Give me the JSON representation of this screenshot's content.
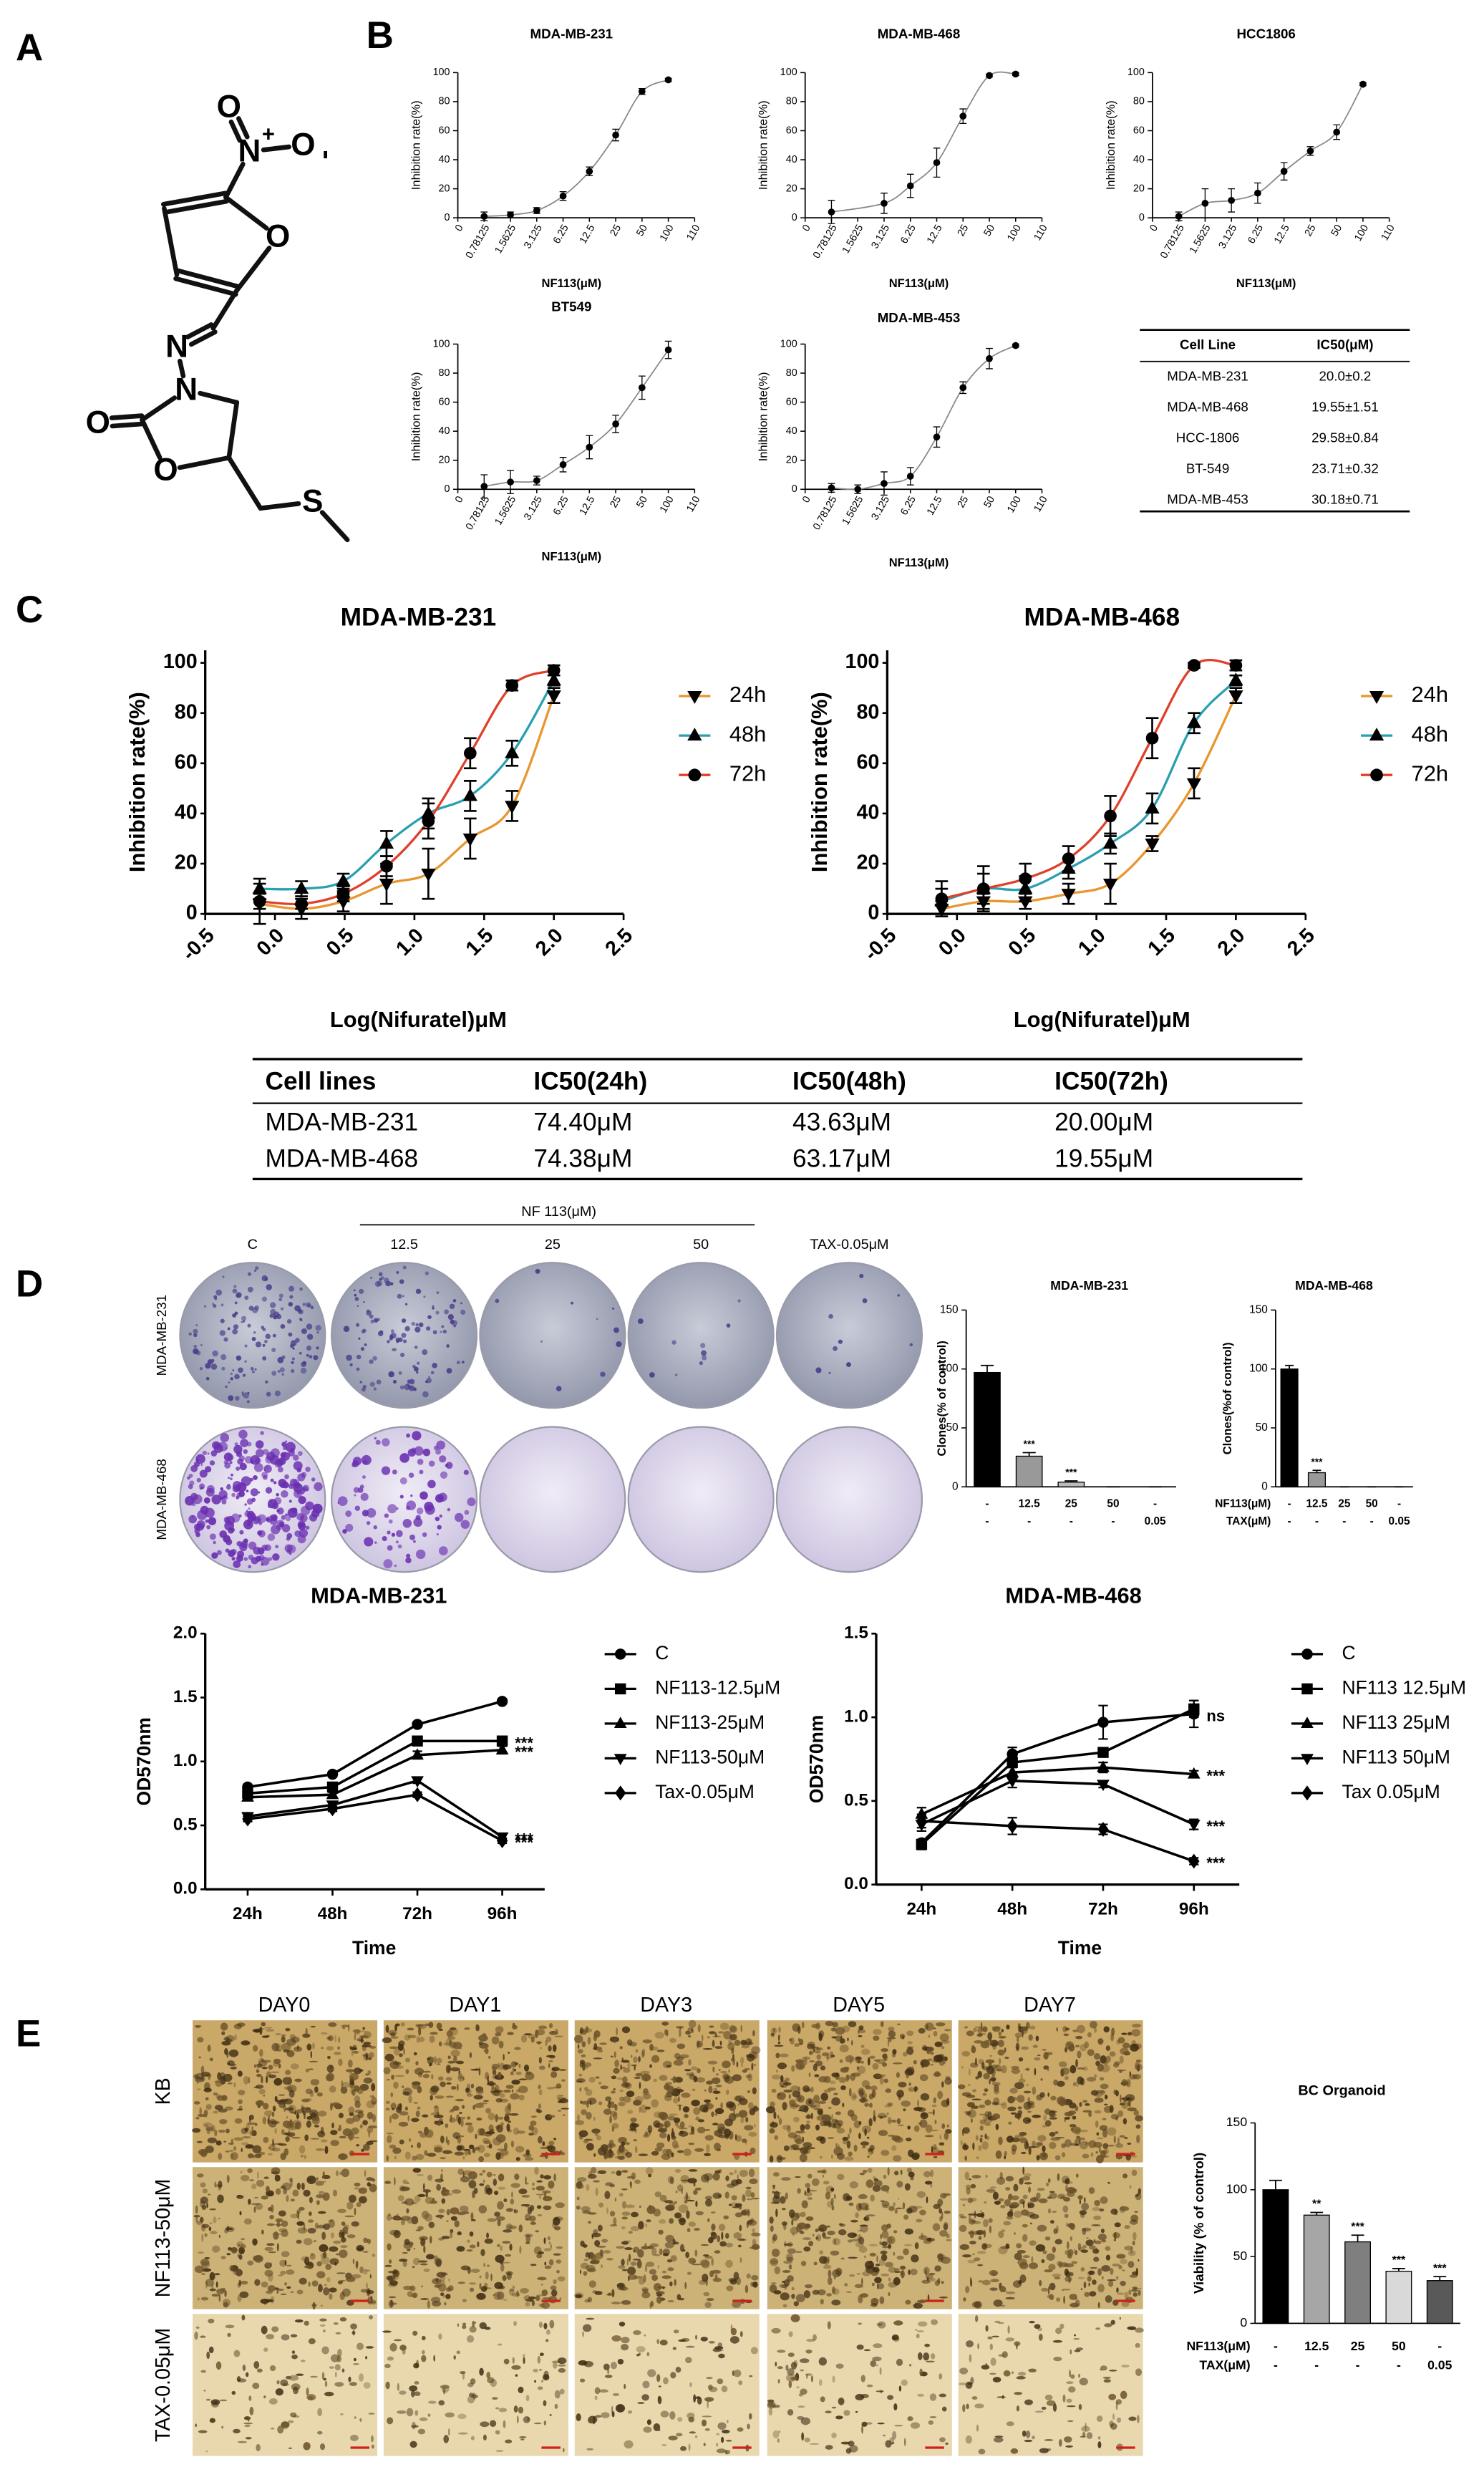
{
  "panel_labels": [
    "A",
    "B",
    "C",
    "D",
    "E"
  ],
  "molecule": {
    "atoms": [
      {
        "label": "O",
        "color": "#e3000f"
      },
      {
        "label": "N",
        "color": "#1a1ae6"
      },
      {
        "label": "O",
        "color": "#e3000f"
      },
      {
        "label": "O",
        "color": "#e3000f"
      },
      {
        "label": "N",
        "color": "#1a1ae6"
      },
      {
        "label": "N",
        "color": "#1a1ae6"
      },
      {
        "label": "O",
        "color": "#e3000f"
      },
      {
        "label": "O",
        "color": "#e3000f"
      },
      {
        "label": "S",
        "color": "#e6c619"
      }
    ],
    "charges": [
      "+",
      "-"
    ]
  },
  "chart_data": [
    {
      "type": "dose",
      "title": "MDA-MB-231",
      "categories": [
        "0",
        "0.78125",
        "1.5625",
        "3.125",
        "6.25",
        "12.5",
        "25",
        "50",
        "100",
        "110"
      ],
      "values": [
        null,
        1,
        2,
        5,
        15,
        32,
        57,
        87,
        95,
        null
      ],
      "errors": [
        null,
        3,
        2,
        2,
        3,
        3,
        4,
        2,
        1,
        null
      ],
      "ylim": [
        0,
        100
      ],
      "yticks": [
        0,
        20,
        40,
        60,
        80,
        100
      ],
      "xlabel": "NF113(μM)",
      "ylabel": "Inhibition rate(%)",
      "color": "#000000",
      "curve_color": "#888888"
    },
    {
      "type": "dose",
      "title": "MDA-MB-468",
      "categories": [
        "0",
        "0.78125",
        "1.5625",
        "3.125",
        "6.25",
        "12.5",
        "25",
        "50",
        "100",
        "110"
      ],
      "values": [
        null,
        4,
        null,
        10,
        22,
        38,
        70,
        98,
        99,
        null
      ],
      "errors": [
        null,
        8,
        null,
        7,
        8,
        10,
        5,
        1,
        1,
        null
      ],
      "ylim": [
        0,
        100
      ],
      "yticks": [
        0,
        20,
        40,
        60,
        80,
        100
      ],
      "xlabel": "NF113(μM)",
      "ylabel": "Inhibition rate(%)",
      "color": "#000000",
      "curve_color": "#888888"
    },
    {
      "type": "dose",
      "title": "HCC1806",
      "categories": [
        "0",
        "0.78125",
        "1.5625",
        "3.125",
        "6.25",
        "12.5",
        "25",
        "50",
        "100",
        "110"
      ],
      "values": [
        null,
        1,
        10,
        12,
        17,
        32,
        46,
        59,
        92,
        null
      ],
      "errors": [
        null,
        3,
        10,
        8,
        7,
        6,
        3,
        5,
        1,
        null
      ],
      "ylim": [
        0,
        100
      ],
      "yticks": [
        0,
        20,
        40,
        60,
        80,
        100
      ],
      "xlabel": "NF113(μM)",
      "ylabel": "Inhibition rate(%)",
      "color": "#000000",
      "curve_color": "#888888"
    },
    {
      "type": "dose",
      "title": "BT549",
      "categories": [
        "0",
        "0.78125",
        "1.5625",
        "3.125",
        "6.25",
        "12.5",
        "25",
        "50",
        "100",
        "110"
      ],
      "values": [
        null,
        2,
        5,
        6,
        17,
        29,
        45,
        70,
        96,
        null
      ],
      "errors": [
        null,
        8,
        8,
        3,
        5,
        8,
        6,
        8,
        6,
        null
      ],
      "ylim": [
        0,
        100
      ],
      "yticks": [
        0,
        20,
        40,
        60,
        80,
        100
      ],
      "xlabel": "NF113(μM)",
      "ylabel": "Inhibition rate(%)",
      "color": "#000000",
      "curve_color": "#888888"
    },
    {
      "type": "dose",
      "title": "MDA-MB-453",
      "categories": [
        "0",
        "0.78125",
        "1.5625",
        "3.125",
        "6.25",
        "12.5",
        "25",
        "50",
        "100",
        "110"
      ],
      "values": [
        null,
        1,
        0,
        4,
        9,
        36,
        70,
        90,
        99,
        null
      ],
      "errors": [
        null,
        3,
        3,
        8,
        6,
        7,
        4,
        7,
        1,
        null
      ],
      "ylim": [
        0,
        100
      ],
      "yticks": [
        0,
        20,
        40,
        60,
        80,
        100
      ],
      "xlabel": "NF113(μM)",
      "ylabel": "Inhibition rate(%)",
      "color": "#000000",
      "curve_color": "#888888"
    },
    {
      "type": "dose",
      "title": "MDA-MB-231",
      "x": [
        -0.11,
        0.19,
        0.49,
        0.8,
        1.1,
        1.4,
        1.7,
        2.0
      ],
      "series": [
        {
          "name": "24h",
          "color": "#e8962e",
          "marker": "triangle-down",
          "values": [
            4,
            2,
            5,
            12,
            16,
            30,
            43,
            87
          ],
          "errors": [
            8,
            4,
            4,
            8,
            10,
            8,
            6,
            3
          ]
        },
        {
          "name": "48h",
          "color": "#2a9fb0",
          "marker": "triangle",
          "values": [
            10,
            10,
            13,
            28,
            40,
            47,
            64,
            93
          ],
          "errors": [
            4,
            3,
            3,
            5,
            6,
            6,
            5,
            2
          ]
        },
        {
          "name": "72h",
          "color": "#e0402a",
          "marker": "circle",
          "values": [
            5,
            4,
            8,
            19,
            37,
            64,
            91,
            97
          ],
          "errors": [
            3,
            2,
            3,
            4,
            7,
            6,
            2,
            2
          ]
        }
      ],
      "marker_color": "#000000",
      "xlim": [
        -0.5,
        2.5
      ],
      "xticks": [
        -0.5,
        {
          "value": 0,
          "label": "0.0"
        },
        0.5,
        {
          "value": 1,
          "label": "1.0"
        },
        1.5,
        {
          "value": 2,
          "label": "2.0"
        },
        2.5
      ],
      "ylim": [
        0,
        105
      ],
      "yticks": [
        0,
        20,
        40,
        60,
        80,
        100
      ],
      "xlabel": "Log(Nifuratel)μM",
      "ylabel": "Inhibition rate(%)",
      "legend": "right"
    },
    {
      "type": "dose",
      "title": "MDA-MB-468",
      "x": [
        -0.11,
        0.19,
        0.49,
        0.8,
        1.1,
        1.4,
        1.7,
        2.0
      ],
      "series": [
        {
          "name": "24h",
          "color": "#e8962e",
          "marker": "triangle-down",
          "values": [
            2,
            5,
            5,
            8,
            12,
            28,
            52,
            87
          ],
          "errors": [
            3,
            3,
            3,
            4,
            8,
            3,
            6,
            3
          ]
        },
        {
          "name": "48h",
          "color": "#2a9fb0",
          "marker": "triangle",
          "values": [
            5,
            10,
            10,
            18,
            28,
            42,
            76,
            93
          ],
          "errors": [
            5,
            6,
            5,
            4,
            4,
            6,
            4,
            2
          ]
        },
        {
          "name": "72h",
          "color": "#e0402a",
          "marker": "circle",
          "values": [
            6,
            10,
            14,
            22,
            39,
            70,
            99,
            99
          ],
          "errors": [
            7,
            9,
            6,
            5,
            8,
            8,
            1,
            2
          ]
        }
      ],
      "marker_color": "#000000",
      "xlim": [
        -0.5,
        2.5
      ],
      "xticks": [
        -0.5,
        {
          "value": 0,
          "label": "0.0"
        },
        0.5,
        {
          "value": 1,
          "label": "1.0"
        },
        1.5,
        {
          "value": 2,
          "label": "2.0"
        },
        2.5
      ],
      "ylim": [
        0,
        105
      ],
      "yticks": [
        0,
        20,
        40,
        60,
        80,
        100
      ],
      "xlabel": "Log(Nifuratel)μM",
      "ylabel": "Inhibition rate(%)",
      "legend": "right"
    },
    {
      "type": "bar",
      "title": "MDA-MB-231",
      "values": [
        97,
        26,
        4,
        0,
        0
      ],
      "errors": [
        6,
        3,
        1,
        0,
        0
      ],
      "annotations": [
        null,
        "***",
        "***",
        null,
        null
      ],
      "colors": [
        "#000000",
        "#999999",
        "#bbbbbb",
        "#cccccc",
        "#cccccc"
      ],
      "treatments": [
        {
          "labels": [
            "-",
            "12.5",
            "25",
            "50",
            "-"
          ]
        },
        {
          "labels": [
            "-",
            "-",
            "-",
            "-",
            "0.05"
          ]
        }
      ],
      "ylim": [
        0,
        150
      ],
      "yticks": [
        0,
        50,
        100,
        150
      ],
      "ylabel": "Clones(% of control)"
    },
    {
      "type": "bar",
      "title": "MDA-MB-468",
      "values": [
        100,
        12,
        0,
        0,
        0
      ],
      "errors": [
        3,
        2,
        0,
        0,
        0
      ],
      "annotations": [
        null,
        "***",
        null,
        null,
        null
      ],
      "colors": [
        "#000000",
        "#999999",
        "#bbbbbb",
        "#cccccc",
        "#cccccc"
      ],
      "treatments": [
        {
          "name": "NF113(μM)",
          "labels": [
            "-",
            "12.5",
            "25",
            "50",
            "-"
          ]
        },
        {
          "name": "TAX(μM)",
          "labels": [
            "-",
            "-",
            "-",
            "-",
            "0.05"
          ]
        }
      ],
      "ylim": [
        0,
        150
      ],
      "yticks": [
        0,
        50,
        100,
        150
      ],
      "ylabel": "Clones(%of control)"
    },
    {
      "type": "line",
      "title": "MDA-MB-231",
      "categories": [
        "24h",
        "48h",
        "72h",
        "96h"
      ],
      "series": [
        {
          "name": "C",
          "marker": "circle",
          "values": [
            0.8,
            0.9,
            1.29,
            1.47
          ],
          "errors": [
            0.02,
            0.02,
            0.02,
            0.02
          ],
          "annotation": null
        },
        {
          "name": "NF113-12.5μM",
          "marker": "square",
          "values": [
            0.75,
            0.8,
            1.16,
            1.16
          ],
          "errors": [
            0.02,
            0.02,
            0.03,
            0.02
          ],
          "annotation": "***"
        },
        {
          "name": "NF113-25μM",
          "marker": "triangle",
          "values": [
            0.72,
            0.74,
            1.05,
            1.09
          ],
          "errors": [
            0.02,
            0.02,
            0.03,
            0.03
          ],
          "annotation": "***"
        },
        {
          "name": "NF113-50μM",
          "marker": "triangle-down",
          "values": [
            0.57,
            0.66,
            0.85,
            0.41
          ],
          "errors": [
            0.02,
            0.02,
            0.02,
            0.02
          ],
          "annotation": "***"
        },
        {
          "name": "Tax-0.05μM",
          "marker": "diamond",
          "values": [
            0.55,
            0.63,
            0.74,
            0.38
          ],
          "errors": [
            0.02,
            0.02,
            0.02,
            0.02
          ],
          "annotation": "***"
        }
      ],
      "color": "#000000",
      "ylim": [
        0,
        2
      ],
      "yticks": [
        {
          "value": 0,
          "label": "0.0"
        },
        0.5,
        {
          "value": 1,
          "label": "1.0"
        },
        1.5,
        {
          "value": 2,
          "label": "2.0"
        }
      ],
      "xlabel": "Time",
      "ylabel": "OD570nm",
      "legend": "right"
    },
    {
      "type": "line",
      "title": "MDA-MB-468",
      "categories": [
        "24h",
        "48h",
        "72h",
        "96h"
      ],
      "series": [
        {
          "name": "C",
          "marker": "circle",
          "values": [
            0.25,
            0.78,
            0.97,
            1.02
          ],
          "errors": [
            0.02,
            0.04,
            0.1,
            0.08
          ],
          "annotation": "ns"
        },
        {
          "name": "NF113 12.5μM",
          "marker": "square",
          "values": [
            0.24,
            0.73,
            0.79,
            1.05
          ],
          "errors": [
            0.03,
            0.03,
            0.02,
            0.05
          ],
          "annotation": null
        },
        {
          "name": "NF113 25μM",
          "marker": "triangle",
          "values": [
            0.42,
            0.67,
            0.7,
            0.66
          ],
          "errors": [
            0.04,
            0.03,
            0.03,
            0.02
          ],
          "annotation": "***"
        },
        {
          "name": "NF113 50μM",
          "marker": "triangle-down",
          "values": [
            0.36,
            0.62,
            0.6,
            0.36
          ],
          "errors": [
            0.04,
            0.04,
            0.02,
            0.03
          ],
          "annotation": "***"
        },
        {
          "name": "Tax 0.05μM",
          "marker": "diamond",
          "values": [
            0.38,
            0.35,
            0.33,
            0.14
          ],
          "errors": [
            0.04,
            0.05,
            0.03,
            0.02
          ],
          "annotation": "***"
        }
      ],
      "color": "#000000",
      "ylim": [
        0,
        1.5
      ],
      "yticks": [
        {
          "value": 0,
          "label": "0.0"
        },
        0.5,
        {
          "value": 1,
          "label": "1.0"
        },
        1.5
      ],
      "xlabel": "Time",
      "ylabel": "OD570nm",
      "legend": "right"
    },
    {
      "type": "bar",
      "title": "BC Organoid",
      "values": [
        100,
        81,
        61,
        39,
        32
      ],
      "errors": [
        7,
        2,
        5,
        2,
        3
      ],
      "annotations": [
        null,
        "**",
        "***",
        "***",
        "***"
      ],
      "colors": [
        "#000000",
        "#a6a6a6",
        "#7f7f7f",
        "#d9d9d9",
        "#595959"
      ],
      "treatments": [
        {
          "name": "NF113(μM)",
          "labels": [
            "-",
            "12.5",
            "25",
            "50",
            "-"
          ]
        },
        {
          "name": "TAX(μM)",
          "labels": [
            "-",
            "-",
            "-",
            "-",
            "0.05"
          ]
        }
      ],
      "ylim": [
        0,
        150
      ],
      "yticks": [
        0,
        50,
        100,
        150
      ],
      "ylabel": "Viability (% of control)"
    }
  ],
  "tables": [
    {
      "header": [
        "Cell Line",
        "IC50(μM)"
      ],
      "rows": [
        [
          "MDA-MB-231",
          "20.0±0.2"
        ],
        [
          "MDA-MB-468",
          "19.55±1.51"
        ],
        [
          "HCC-1806",
          "29.58±0.84"
        ],
        [
          "BT-549",
          "23.71±0.32"
        ],
        [
          "MDA-MB-453",
          "30.18±0.71"
        ]
      ]
    },
    {
      "header": [
        "Cell lines",
        "IC50(24h)",
        "IC50(48h)",
        "IC50(72h)"
      ],
      "rows": [
        [
          "MDA-MB-231",
          "74.40μM",
          "43.63μM",
          "20.00μM"
        ],
        [
          "MDA-MB-468",
          "74.38μM",
          "63.17μM",
          "19.55μM"
        ]
      ]
    }
  ],
  "colony_assay": {
    "group_label": "NF 113(μM)",
    "columns": [
      "C",
      "12.5",
      "25",
      "50",
      "TAX-0.05μM"
    ],
    "rows": [
      "MDA-MB-231",
      "MDA-MB-468"
    ]
  },
  "organoid_assay": {
    "columns": [
      "DAY0",
      "DAY1",
      "DAY3",
      "DAY5",
      "DAY7"
    ],
    "rows": [
      "KB",
      "NF113-50μM",
      "TAX-0.05μM"
    ]
  }
}
